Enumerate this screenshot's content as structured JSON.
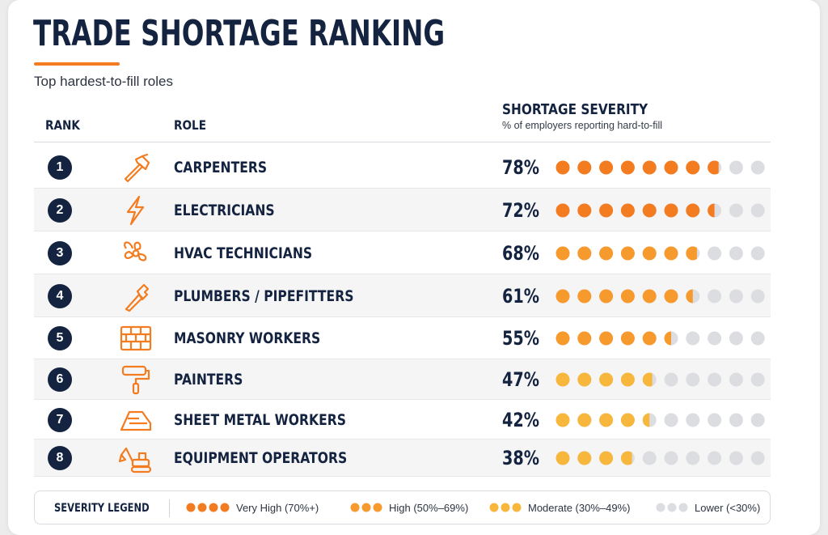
{
  "header": {
    "title": "TRADE SHORTAGE RANKING",
    "subtitle": "Top hardest-to-fill roles"
  },
  "columns": {
    "rank": "RANK",
    "role": "ROLE",
    "severity": "SHORTAGE SEVERITY",
    "severity_sub": "% of employers reporting hard-to-fill"
  },
  "colors": {
    "very_high": "#f47c20",
    "high": "#f79a2e",
    "moderate": "#f6b73c",
    "lower": "#dcdde0",
    "navy": "#142340"
  },
  "chart_data": {
    "type": "table",
    "dots_total": 10,
    "rows": [
      {
        "rank": "1",
        "role": "CARPENTERS",
        "value": 78,
        "label": "78%",
        "icon": "hammer-icon"
      },
      {
        "rank": "2",
        "role": "ELECTRICIANS",
        "value": 72,
        "label": "72%",
        "icon": "lightning-bolt-icon"
      },
      {
        "rank": "3",
        "role": "HVAC TECHNICIANS",
        "value": 68,
        "label": "68%",
        "icon": "fan-icon"
      },
      {
        "rank": "4",
        "role": "PLUMBERS / PIPEFITTERS",
        "value": 61,
        "label": "61%",
        "icon": "pipe-wrench-icon"
      },
      {
        "rank": "5",
        "role": "MASONRY WORKERS",
        "value": 55,
        "label": "55%",
        "icon": "brick-wall-icon"
      },
      {
        "rank": "6",
        "role": "PAINTERS",
        "value": 47,
        "label": "47%",
        "icon": "paint-roller-icon"
      },
      {
        "rank": "7",
        "role": "SHEET METAL WORKERS",
        "value": 42,
        "label": "42%",
        "icon": "sheet-metal-icon"
      },
      {
        "rank": "8",
        "role": "EQUIPMENT OPERATORS",
        "value": 38,
        "label": "38%",
        "icon": "excavator-icon"
      }
    ]
  },
  "legend": {
    "title": "SEVERITY LEGEND",
    "items": [
      {
        "label": "Very High (70%+)",
        "color": "#f47c20",
        "dots": 4
      },
      {
        "label": "High (50%–69%)",
        "color": "#f79a2e",
        "dots": 3
      },
      {
        "label": "Moderate (30%–49%)",
        "color": "#f6b73c",
        "dots": 3
      },
      {
        "label": "Lower (<30%)",
        "color": "#dcdde0",
        "dots": 3
      }
    ]
  }
}
